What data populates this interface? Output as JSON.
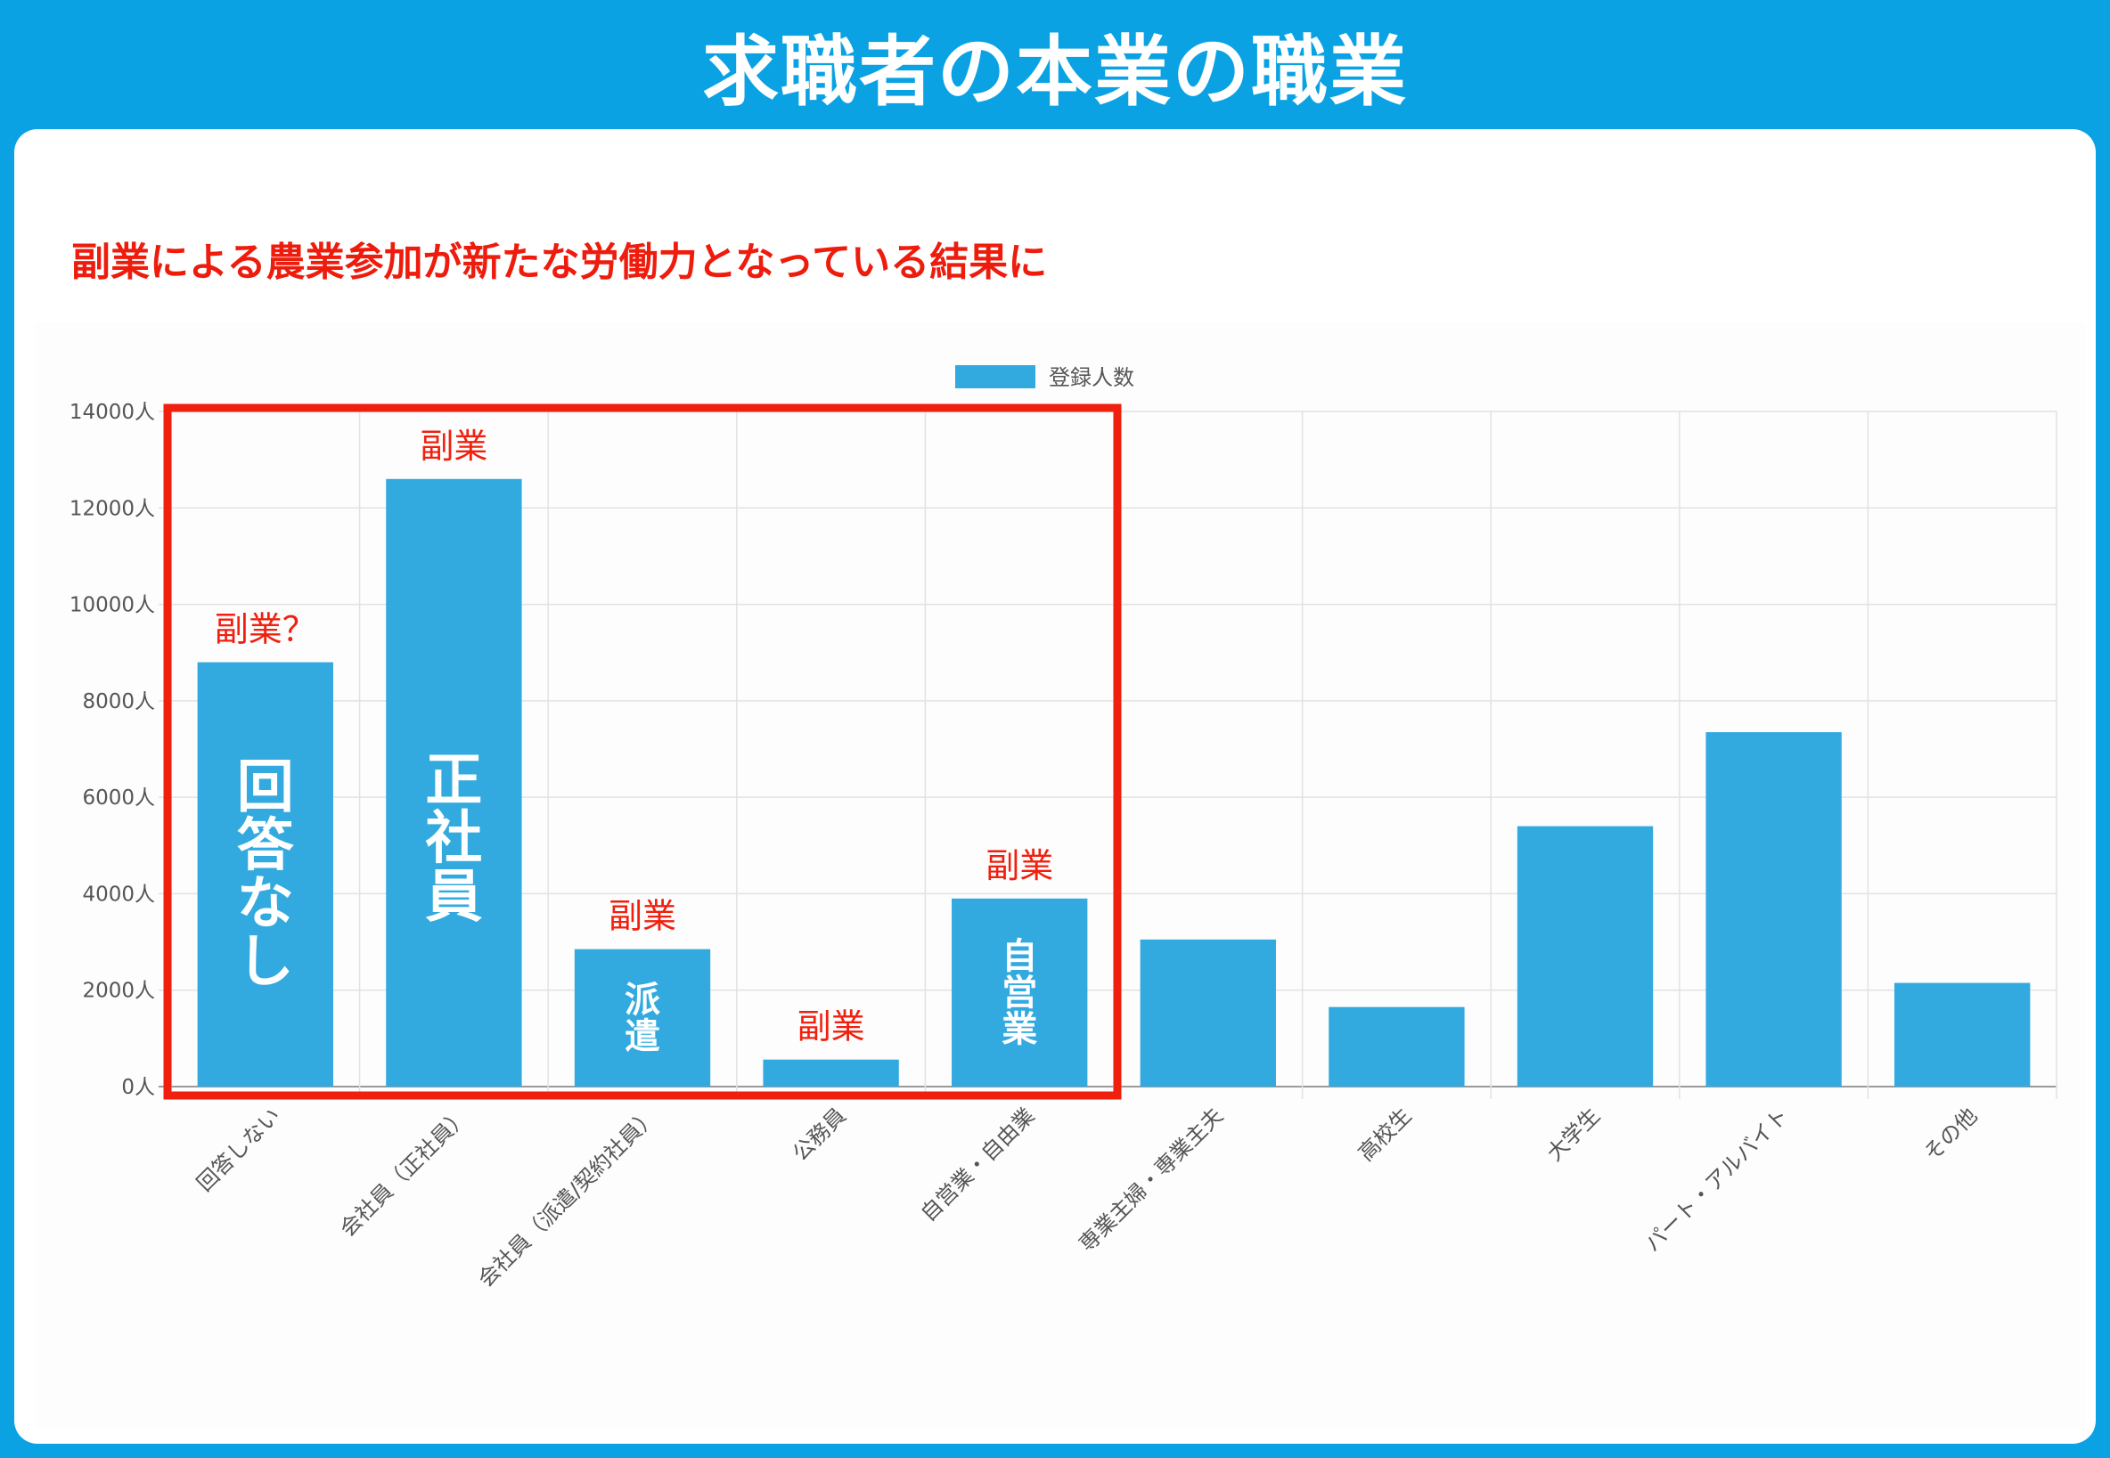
{
  "header": {
    "title": "求職者の本業の職業"
  },
  "subtitle": "副業による農業参加が新たな労働力となっている結果に",
  "colors": {
    "bar": "#33aadf",
    "accent": "#f0200e",
    "header": "#0aa2e3",
    "highlight_box": "#f0200e"
  },
  "chart_data": {
    "type": "bar",
    "categories": [
      "回答しない",
      "会社員（正社員）",
      "会社員（派遣/契約社員）",
      "公務員",
      "自営業・自由業",
      "専業主婦・専業主夫",
      "高校生",
      "大学生",
      "パート・アルバイト",
      "その他"
    ],
    "series": [
      {
        "name": "登録人数",
        "values": [
          8800,
          12600,
          2850,
          560,
          3900,
          3050,
          1650,
          5400,
          7350,
          2150
        ]
      }
    ],
    "ylim": [
      0,
      14000
    ],
    "y_ticks": [
      0,
      2000,
      4000,
      6000,
      8000,
      10000,
      12000,
      14000
    ],
    "y_tick_suffix": "人",
    "grid": true,
    "legend_position": "top",
    "annotations": {
      "above_bar": [
        "副業？",
        "副業",
        "副業",
        "副業",
        "副業",
        "",
        "",
        "",
        "",
        ""
      ],
      "inside_bar": [
        "回答なし",
        "正社員",
        "派遣",
        "",
        "自営業",
        "",
        "",
        "",
        "",
        ""
      ]
    },
    "highlight_range": [
      0,
      4
    ]
  }
}
